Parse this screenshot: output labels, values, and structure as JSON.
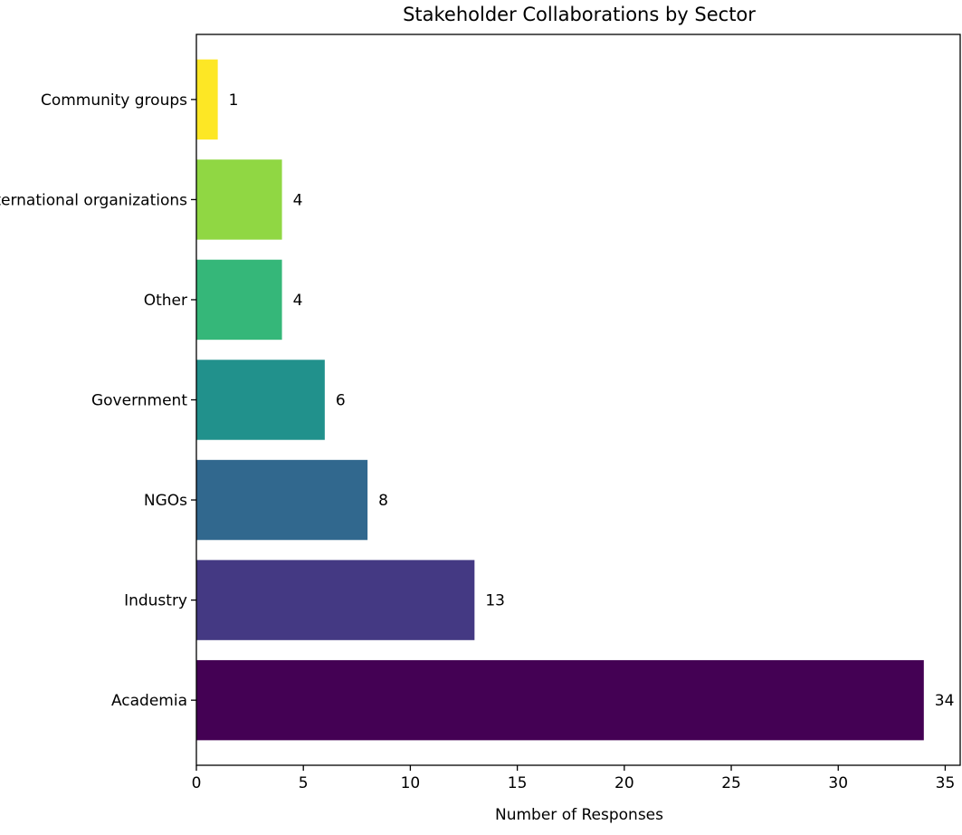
{
  "chart_data": {
    "type": "bar",
    "orientation": "horizontal",
    "title": "Stakeholder Collaborations by Sector",
    "xlabel": "Number of Responses",
    "ylabel": "",
    "categories": [
      "Academia",
      "Industry",
      "NGOs",
      "Government",
      "Other",
      "International organizations",
      "Community groups"
    ],
    "values": [
      34,
      13,
      8,
      6,
      4,
      4,
      1
    ],
    "colors": [
      "#440154",
      "#443983",
      "#31688e",
      "#21918c",
      "#35b779",
      "#90d743",
      "#fde725"
    ],
    "xlim": [
      0,
      35.7
    ],
    "xticks": [
      0,
      5,
      10,
      15,
      20,
      25,
      30,
      35
    ],
    "show_data_labels": true,
    "grid": false
  }
}
